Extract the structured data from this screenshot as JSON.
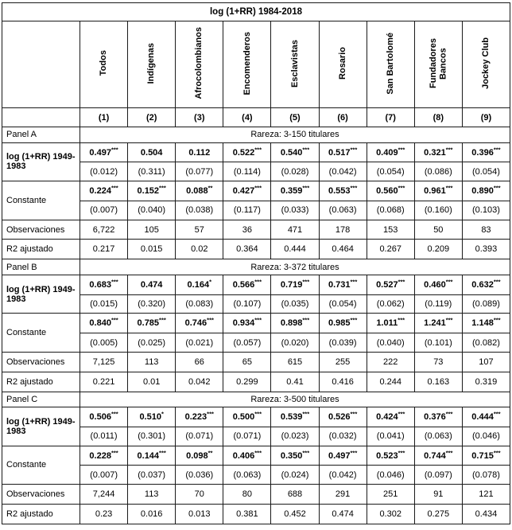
{
  "title": "log (1+RR) 1984-2018",
  "columns": [
    "Todos",
    "Indígenas",
    "Afrocolombianos",
    "Encomenderos",
    "Esclavistas",
    "Rosario",
    "San Bartolomé",
    "Fundadores Bancos",
    "Jockey Club"
  ],
  "column_numbers": [
    "(1)",
    "(2)",
    "(3)",
    "(4)",
    "(5)",
    "(6)",
    "(7)",
    "(8)",
    "(9)"
  ],
  "row_labels": {
    "lag": "log (1+RR) 1949-1983",
    "constant": "Constante",
    "observations": "Observaciones",
    "r2": "R2 ajustado"
  },
  "panels": [
    {
      "name": "Panel A",
      "subtitle": "Rareza: 3-150 titulares",
      "lag_coef": [
        "0.497***",
        "0.504",
        "0.112",
        "0.522***",
        "0.540***",
        "0.517***",
        "0.409***",
        "0.321***",
        "0.396***"
      ],
      "lag_se": [
        "(0.012)",
        "(0.311)",
        "(0.077)",
        "(0.114)",
        "(0.028)",
        "(0.042)",
        "(0.054)",
        "(0.086)",
        "(0.054)"
      ],
      "const_coef": [
        "0.224***",
        "0.152***",
        "0.088**",
        "0.427***",
        "0.359***",
        "0.553***",
        "0.560***",
        "0.961***",
        "0.890***"
      ],
      "const_se": [
        "(0.007)",
        "(0.040)",
        "(0.038)",
        "(0.117)",
        "(0.033)",
        "(0.063)",
        "(0.068)",
        "(0.160)",
        "(0.103)"
      ],
      "observations": [
        "6,722",
        "105",
        "57",
        "36",
        "471",
        "178",
        "153",
        "50",
        "83"
      ],
      "r2": [
        "0.217",
        "0.015",
        "0.02",
        "0.364",
        "0.444",
        "0.464",
        "0.267",
        "0.209",
        "0.393"
      ]
    },
    {
      "name": "Panel B",
      "subtitle": "Rareza: 3-372 titulares",
      "lag_coef": [
        "0.683***",
        "0.474",
        "0.164*",
        "0.566***",
        "0.719***",
        "0.731***",
        "0.527***",
        "0.460***",
        "0.632***"
      ],
      "lag_se": [
        "(0.015)",
        "(0.320)",
        "(0.083)",
        "(0.107)",
        "(0.035)",
        "(0.054)",
        "(0.062)",
        "(0.119)",
        "(0.089)"
      ],
      "const_coef": [
        "0.840***",
        "0.785***",
        "0.746***",
        "0.934***",
        "0.898***",
        "0.985***",
        "1.011***",
        "1.241***",
        "1.148***"
      ],
      "const_se": [
        "(0.005)",
        "(0.025)",
        "(0.021)",
        "(0.057)",
        "(0.020)",
        "(0.039)",
        "(0.040)",
        "(0.101)",
        "(0.082)"
      ],
      "observations": [
        "7,125",
        "113",
        "66",
        "65",
        "615",
        "255",
        "222",
        "73",
        "107"
      ],
      "r2": [
        "0.221",
        "0.01",
        "0.042",
        "0.299",
        "0.41",
        "0.416",
        "0.244",
        "0.163",
        "0.319"
      ]
    },
    {
      "name": "Panel C",
      "subtitle": "Rareza: 3-500 titulares",
      "lag_coef": [
        "0.506***",
        "0.510*",
        "0.223***",
        "0.500***",
        "0.539***",
        "0.526***",
        "0.424***",
        "0.376***",
        "0.444***"
      ],
      "lag_se": [
        "(0.011)",
        "(0.301)",
        "(0.071)",
        "(0.071)",
        "(0.023)",
        "(0.032)",
        "(0.041)",
        "(0.063)",
        "(0.046)"
      ],
      "const_coef": [
        "0.228***",
        "0.144***",
        "0.098**",
        "0.406***",
        "0.350***",
        "0.497***",
        "0.523***",
        "0.744***",
        "0.715***"
      ],
      "const_se": [
        "(0.007)",
        "(0.037)",
        "(0.036)",
        "(0.063)",
        "(0.024)",
        "(0.042)",
        "(0.046)",
        "(0.097)",
        "(0.078)"
      ],
      "observations": [
        "7,244",
        "113",
        "70",
        "80",
        "688",
        "291",
        "251",
        "91",
        "121"
      ],
      "r2": [
        "0.23",
        "0.016",
        "0.013",
        "0.381",
        "0.452",
        "0.474",
        "0.302",
        "0.275",
        "0.434"
      ]
    }
  ]
}
